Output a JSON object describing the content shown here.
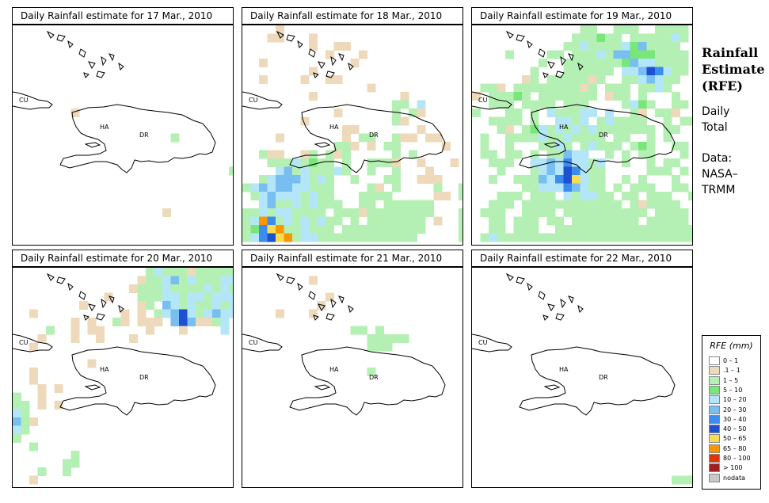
{
  "panels": [
    {
      "title": "Daily Rainfall estimate for  17 Mar., 2010",
      "date": "17 Mar., 2010"
    },
    {
      "title": "Daily Rainfall estimate for  18 Mar., 2010",
      "date": "18 Mar., 2010"
    },
    {
      "title": "Daily Rainfall estimate for  19 Mar., 2010",
      "date": "19 Mar., 2010"
    },
    {
      "title": "Daily Rainfall estimate for  20 Mar., 2010",
      "date": "20 Mar., 2010"
    },
    {
      "title": "Daily Rainfall estimate for  21 Mar., 2010",
      "date": "21 Mar., 2010"
    },
    {
      "title": "Daily Rainfall estimate for  22 Mar., 2010",
      "date": "22 Mar., 2010"
    }
  ],
  "map_labels": {
    "cuba": "CU",
    "haiti": "HA",
    "dominican_republic": "DR"
  },
  "side": {
    "title_line1": "Rainfall",
    "title_line2": "Estimate",
    "title_line3": "(RFE)",
    "daily_line1": "Daily",
    "daily_line2": "Total",
    "data_line1": "Data:",
    "data_line2": "NASA–",
    "data_line3": "TRMM"
  },
  "legend": {
    "title": "RFE (mm)",
    "items": [
      {
        "label": "0 – 1",
        "color": "#ffffff"
      },
      {
        "label": ".1 – 1",
        "color": "#eed9bb"
      },
      {
        "label": "1 – 5",
        "color": "#b4f0b4"
      },
      {
        "label": "5 – 10",
        "color": "#78e678"
      },
      {
        "label": "10 – 20",
        "color": "#b4e6fa"
      },
      {
        "label": "20 – 30",
        "color": "#78bef0"
      },
      {
        "label": "30 – 40",
        "color": "#3c8cf0"
      },
      {
        "label": "40 – 50",
        "color": "#1e50d2"
      },
      {
        "label": "50 – 65",
        "color": "#fadc50"
      },
      {
        "label": "65 – 80",
        "color": "#fa9600"
      },
      {
        "label": "80 – 100",
        "color": "#e63200"
      },
      {
        "label": "> 100",
        "color": "#a01e1e"
      },
      {
        "label": "nodata",
        "color": "#c8c8c8"
      }
    ]
  }
}
